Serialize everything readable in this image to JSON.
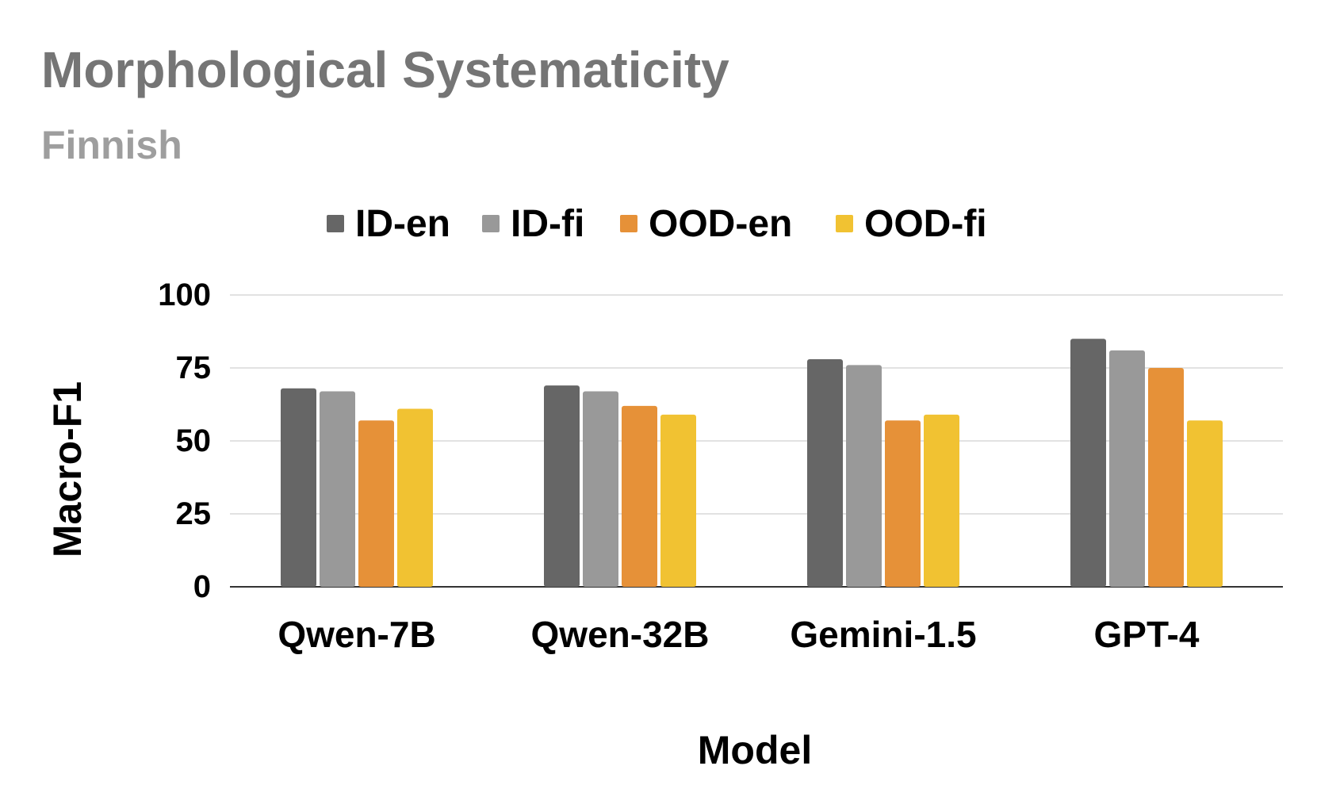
{
  "chart_data": {
    "type": "bar",
    "title": "Morphological Systematicity",
    "subtitle": "Finnish",
    "xlabel": "Model",
    "ylabel": "Macro-F1",
    "ylim": [
      0,
      100
    ],
    "yticks": [
      0,
      25,
      50,
      75,
      100
    ],
    "grid": true,
    "legend_position": "top",
    "categories": [
      "Qwen-7B",
      "Qwen-32B",
      "Gemini-1.5",
      "GPT-4"
    ],
    "series": [
      {
        "name": "ID-en",
        "color": "#666666",
        "values": [
          68,
          69,
          78,
          85
        ]
      },
      {
        "name": "ID-fi",
        "color": "#999999",
        "values": [
          67,
          67,
          76,
          81
        ]
      },
      {
        "name": "OOD-en",
        "color": "#E69138",
        "values": [
          57,
          62,
          57,
          75
        ]
      },
      {
        "name": "OOD-fi",
        "color": "#F1C232",
        "values": [
          61,
          59,
          59,
          57
        ]
      }
    ]
  },
  "colors": {
    "title": "#757575",
    "subtitle": "#9e9e9e",
    "gridline": "#d9d9d9",
    "baseline": "#333333"
  }
}
